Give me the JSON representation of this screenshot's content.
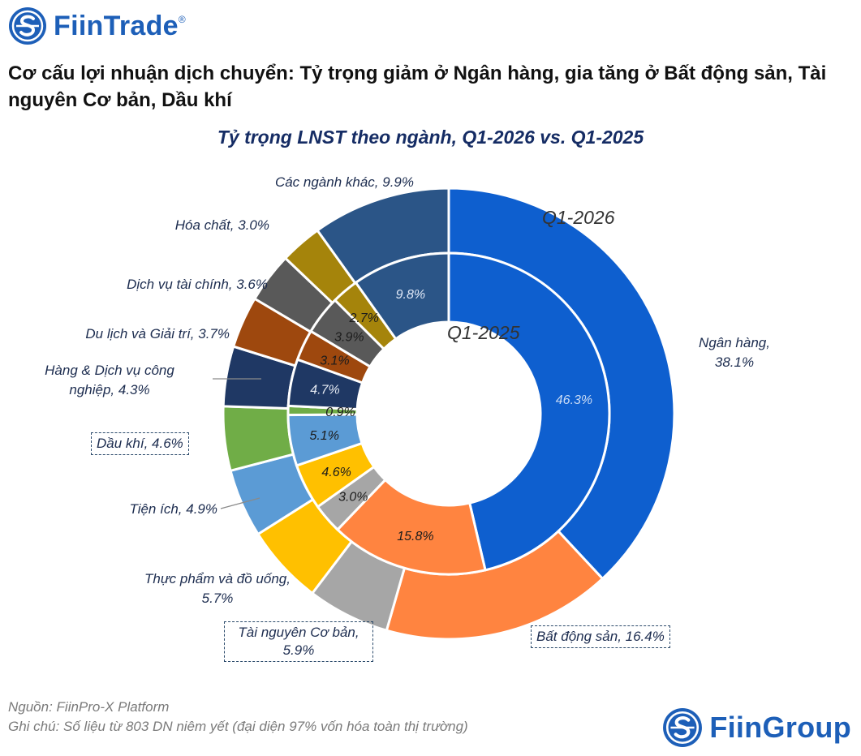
{
  "brand": {
    "top": "FiinTrade",
    "reg": "®",
    "bottom": "FiinGroup"
  },
  "headline": "Cơ cấu lợi nhuận dịch chuyển: Tỷ trọng giảm ở Ngân hàng, gia tăng ở Bất động sản, Tài nguyên Cơ bản, Dầu khí",
  "footer": {
    "source": "Nguồn: FiinPro-X Platform",
    "note": "Ghi chú: Số liệu từ 803 DN niêm yết (đại diện 97% vốn hóa toàn thị trường)"
  },
  "colors": {
    "brand_blue": "#1d5fb8",
    "title_navy": "#152c64"
  },
  "chart_data": {
    "type": "donut",
    "title": "Tỷ trọng LNST theo ngành, Q1-2026 vs. Q1-2025",
    "rings": {
      "outer": "Q1-2026",
      "inner": "Q1-2025"
    },
    "unit": "%",
    "categories": [
      {
        "name": "Ngân hàng",
        "color": "#0e5fcf",
        "q1_2026": 38.1,
        "q1_2025": 46.3,
        "label_2026": "Ngân hàng, 38.1%",
        "label_2025": "46.3%"
      },
      {
        "name": "Bất động sản",
        "color": "#ff8440",
        "q1_2026": 16.4,
        "q1_2025": 15.8,
        "label_2026": "Bất động sản, 16.4%",
        "label_2025": "15.8%"
      },
      {
        "name": "Tài nguyên Cơ bản",
        "color": "#a6a6a6",
        "q1_2026": 5.9,
        "q1_2025": 3.0,
        "label_2026": "Tài nguyên Cơ bản, 5.9%",
        "label_2025": "3.0%"
      },
      {
        "name": "Thực phẩm và đồ uống",
        "color": "#ffc000",
        "q1_2026": 5.7,
        "q1_2025": 4.6,
        "label_2026": "Thực phẩm và đồ uống, 5.7%",
        "label_2025": "4.6%"
      },
      {
        "name": "Tiện ích",
        "color": "#5b9bd5",
        "q1_2026": 4.9,
        "q1_2025": 5.1,
        "label_2026": "Tiện ích, 4.9%",
        "label_2025": "5.1%"
      },
      {
        "name": "Dầu khí",
        "color": "#70ad47",
        "q1_2026": 4.6,
        "q1_2025": 0.9,
        "label_2026": "Dầu khí, 4.6%",
        "label_2025": "0.9%"
      },
      {
        "name": "Hàng & Dịch vụ công nghiệp",
        "color": "#1f3864",
        "q1_2026": 4.3,
        "q1_2025": 4.7,
        "label_2026": "Hàng & Dịch vụ công nghiệp, 4.3%",
        "label_2025": "4.7%"
      },
      {
        "name": "Du lịch và Giải trí",
        "color": "#9e480e",
        "q1_2026": 3.7,
        "q1_2025": 3.1,
        "label_2026": "Du lịch và Giải trí, 3.7%",
        "label_2025": "3.1%"
      },
      {
        "name": "Dịch vụ tài chính",
        "color": "#595959",
        "q1_2026": 3.6,
        "q1_2025": 3.9,
        "label_2026": "Dịch vụ tài chính, 3.6%",
        "label_2025": "3.9%"
      },
      {
        "name": "Hóa chất",
        "color": "#a5840b",
        "q1_2026": 3.0,
        "q1_2025": 2.7,
        "label_2026": "Hóa chất, 3.0%",
        "label_2025": "2.7%"
      },
      {
        "name": "Các ngành khác",
        "color": "#2b5587",
        "q1_2026": 9.9,
        "q1_2025": 9.8,
        "label_2026": "Các ngành khác, 9.9%",
        "label_2025": "9.8%"
      }
    ],
    "boxed_labels": [
      "Dầu khí",
      "Tài nguyên Cơ bản",
      "Bất động sản"
    ]
  }
}
